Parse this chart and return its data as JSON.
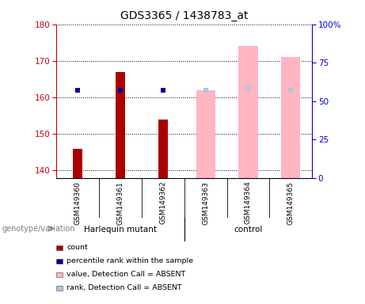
{
  "title": "GDS3365 / 1438783_at",
  "samples": [
    "GSM149360",
    "GSM149361",
    "GSM149362",
    "GSM149363",
    "GSM149364",
    "GSM149365"
  ],
  "ylim_left": [
    138,
    180
  ],
  "ylim_right": [
    0,
    100
  ],
  "yticks_left": [
    140,
    150,
    160,
    170,
    180
  ],
  "yticks_right": [
    0,
    25,
    50,
    75,
    100
  ],
  "count_values": [
    146,
    167,
    154,
    null,
    null,
    null
  ],
  "count_color": "#AA0000",
  "rank_values": [
    162,
    162,
    162,
    null,
    null,
    null
  ],
  "rank_color": "#00008B",
  "absent_value_values": [
    null,
    null,
    null,
    162,
    174,
    171
  ],
  "absent_value_color": "#FFB6C1",
  "absent_rank_values": [
    null,
    null,
    null,
    162,
    162.5,
    162
  ],
  "absent_rank_color": "#B0C4DE",
  "left_axis_color": "#CC0000",
  "right_axis_color": "#0000CC",
  "plot_bg_color": "#FFFFFF",
  "sample_box_color": "#C8C8C8",
  "group_box_color": "#90EE90",
  "legend_items": [
    {
      "label": "count",
      "color": "#AA0000"
    },
    {
      "label": "percentile rank within the sample",
      "color": "#00008B"
    },
    {
      "label": "value, Detection Call = ABSENT",
      "color": "#FFB6C1"
    },
    {
      "label": "rank, Detection Call = ABSENT",
      "color": "#B0C4DE"
    }
  ],
  "genotype_label": "genotype/variation"
}
